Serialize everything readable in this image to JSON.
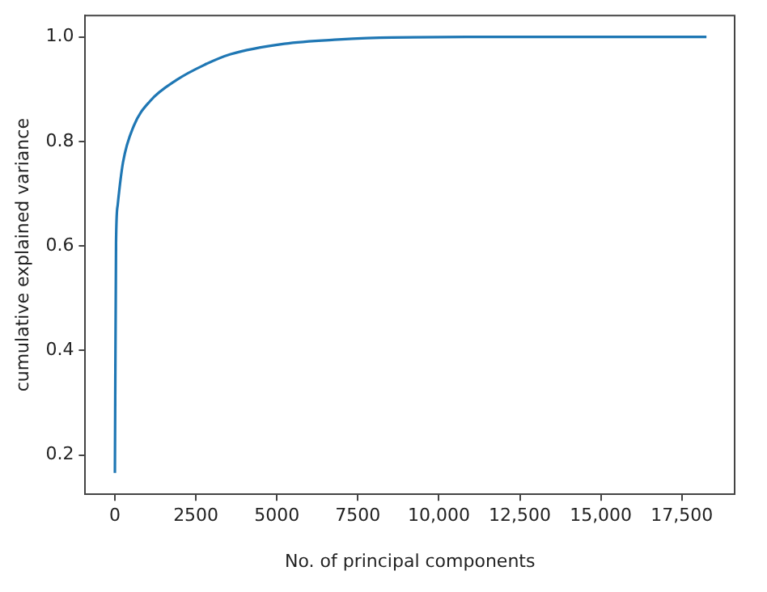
{
  "chart_data": {
    "type": "line",
    "xlabel": "No. of principal components",
    "ylabel": "cumulative explained variance",
    "x": [
      0,
      35,
      85,
      250,
      583,
      1080,
      1912,
      2742,
      3570,
      5230,
      6890,
      8550,
      12000,
      18260
    ],
    "series": [
      {
        "color": "#1f77b4",
        "values": [
          0.166,
          0.606,
          0.678,
          0.76,
          0.83,
          0.877,
          0.918,
          0.946,
          0.967,
          0.987,
          0.995,
          0.999,
          1.0,
          1.0
        ]
      }
    ],
    "xlim": [
      -915,
      19130
    ],
    "ylim": [
      0.125,
      1.041
    ],
    "xticks": [
      0,
      2500,
      5000,
      7500,
      {
        "value": 10000,
        "label": "10,000"
      },
      {
        "value": 12500,
        "label": "12,500"
      },
      {
        "value": 15000,
        "label": "15,000"
      },
      {
        "value": 17500,
        "label": "17,500"
      }
    ],
    "yticks": [
      {
        "value": 0.2,
        "label": "0.2"
      },
      {
        "value": 0.4,
        "label": "0.4"
      },
      {
        "value": 0.6,
        "label": "0.6"
      },
      {
        "value": 0.8,
        "label": "0.8"
      },
      {
        "value": 1.0,
        "label": "1.0"
      }
    ],
    "grid": false,
    "legend": false,
    "marker": "none",
    "line_style": "solid"
  }
}
